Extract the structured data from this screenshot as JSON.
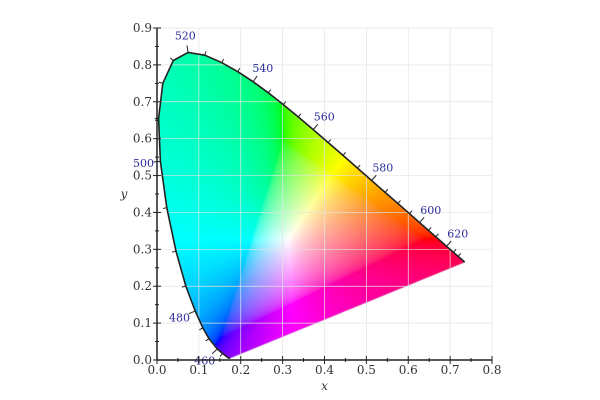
{
  "chart_data": {
    "type": "scatter",
    "xlabel": "x",
    "ylabel": "y",
    "xlim": [
      0.0,
      0.8
    ],
    "ylim": [
      0.0,
      0.9
    ],
    "x_ticks": [
      "0.0",
      "0.1",
      "0.2",
      "0.3",
      "0.4",
      "0.5",
      "0.6",
      "0.7",
      "0.8"
    ],
    "y_ticks": [
      "0.0",
      "0.1",
      "0.2",
      "0.3",
      "0.4",
      "0.5",
      "0.6",
      "0.7",
      "0.8",
      "0.9"
    ],
    "grid": true,
    "wavelength_labels": [
      "460",
      "480",
      "500",
      "520",
      "540",
      "560",
      "580",
      "600",
      "620"
    ],
    "spectral_locus": [
      {
        "nm": 380,
        "x": 0.1741,
        "y": 0.005
      },
      {
        "nm": 400,
        "x": 0.1733,
        "y": 0.0048
      },
      {
        "nm": 420,
        "x": 0.1714,
        "y": 0.0051
      },
      {
        "nm": 440,
        "x": 0.1644,
        "y": 0.0109
      },
      {
        "nm": 450,
        "x": 0.1566,
        "y": 0.0177
      },
      {
        "nm": 460,
        "x": 0.144,
        "y": 0.0297
      },
      {
        "nm": 470,
        "x": 0.1241,
        "y": 0.0578
      },
      {
        "nm": 475,
        "x": 0.1096,
        "y": 0.0868
      },
      {
        "nm": 480,
        "x": 0.0913,
        "y": 0.1327
      },
      {
        "nm": 485,
        "x": 0.0687,
        "y": 0.2007
      },
      {
        "nm": 490,
        "x": 0.0454,
        "y": 0.295
      },
      {
        "nm": 495,
        "x": 0.0235,
        "y": 0.4127
      },
      {
        "nm": 500,
        "x": 0.0082,
        "y": 0.5384
      },
      {
        "nm": 505,
        "x": 0.0039,
        "y": 0.6548
      },
      {
        "nm": 510,
        "x": 0.0139,
        "y": 0.7502
      },
      {
        "nm": 515,
        "x": 0.0389,
        "y": 0.812
      },
      {
        "nm": 520,
        "x": 0.0743,
        "y": 0.8338
      },
      {
        "nm": 525,
        "x": 0.1142,
        "y": 0.8262
      },
      {
        "nm": 530,
        "x": 0.1547,
        "y": 0.8059
      },
      {
        "nm": 535,
        "x": 0.1929,
        "y": 0.7816
      },
      {
        "nm": 540,
        "x": 0.2296,
        "y": 0.7543
      },
      {
        "nm": 545,
        "x": 0.2658,
        "y": 0.7243
      },
      {
        "nm": 550,
        "x": 0.3016,
        "y": 0.6923
      },
      {
        "nm": 555,
        "x": 0.3373,
        "y": 0.6589
      },
      {
        "nm": 560,
        "x": 0.3731,
        "y": 0.6245
      },
      {
        "nm": 565,
        "x": 0.4087,
        "y": 0.5896
      },
      {
        "nm": 570,
        "x": 0.4441,
        "y": 0.5547
      },
      {
        "nm": 575,
        "x": 0.4788,
        "y": 0.5202
      },
      {
        "nm": 580,
        "x": 0.5125,
        "y": 0.4866
      },
      {
        "nm": 585,
        "x": 0.5448,
        "y": 0.4544
      },
      {
        "nm": 590,
        "x": 0.5752,
        "y": 0.4242
      },
      {
        "nm": 595,
        "x": 0.6029,
        "y": 0.3965
      },
      {
        "nm": 600,
        "x": 0.627,
        "y": 0.3725
      },
      {
        "nm": 605,
        "x": 0.6482,
        "y": 0.3514
      },
      {
        "nm": 610,
        "x": 0.6658,
        "y": 0.334
      },
      {
        "nm": 620,
        "x": 0.6915,
        "y": 0.3083
      },
      {
        "nm": 630,
        "x": 0.7079,
        "y": 0.292
      },
      {
        "nm": 640,
        "x": 0.719,
        "y": 0.2809
      },
      {
        "nm": 650,
        "x": 0.726,
        "y": 0.274
      },
      {
        "nm": 660,
        "x": 0.73,
        "y": 0.27
      },
      {
        "nm": 680,
        "x": 0.7334,
        "y": 0.2666
      },
      {
        "nm": 700,
        "x": 0.7347,
        "y": 0.2653
      }
    ],
    "colors": {
      "locus": "#222222",
      "wavelength_label": "#2b2b9a",
      "grid": "#e4e4e4"
    }
  }
}
